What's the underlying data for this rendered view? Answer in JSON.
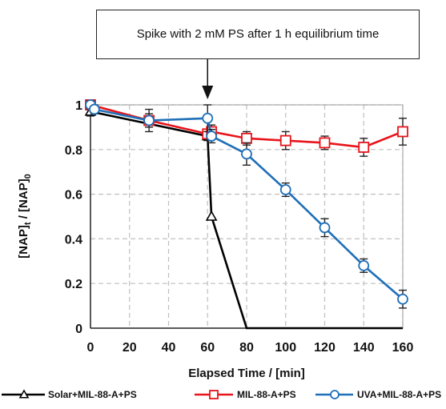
{
  "annotation": {
    "text": "Spike with 2 mM PS after 1 h equilibrium time",
    "x": 60
  },
  "chart_data": {
    "type": "line",
    "xlabel": "Elapsed Time / [min]",
    "ylabel": {
      "p1": "[NAP]",
      "s1": "t",
      "p2": " / [NAP]",
      "s2": "0"
    },
    "xlim": [
      0,
      160
    ],
    "ylim": [
      0,
      1
    ],
    "xticks": [
      0,
      20,
      40,
      60,
      80,
      100,
      120,
      140,
      160
    ],
    "yticks": [
      0,
      0.2,
      0.4,
      0.6,
      0.8,
      1
    ],
    "ytick_labels": [
      "0",
      "0.2",
      "0.4",
      "0.6",
      "0.8",
      "1"
    ],
    "grid": true,
    "legend_position": "bottom",
    "series": [
      {
        "name": "Solar+MIL-88-A+PS",
        "color": "#000000",
        "marker": "triangle",
        "x": [
          0,
          60,
          62,
          80,
          160
        ],
        "y": [
          0.97,
          0.86,
          0.5,
          0,
          0
        ],
        "err": [
          0.02,
          0.02,
          0,
          0,
          0
        ]
      },
      {
        "name": "MIL-88-A+PS",
        "color": "#e8141b",
        "marker": "square",
        "x": [
          0,
          30,
          60,
          62,
          80,
          100,
          120,
          140,
          160
        ],
        "y": [
          1.0,
          0.93,
          0.87,
          0.88,
          0.85,
          0.84,
          0.83,
          0.81,
          0.88
        ],
        "err": [
          0.02,
          0.05,
          0.02,
          0.03,
          0.03,
          0.04,
          0.03,
          0.04,
          0.06
        ]
      },
      {
        "name": "UVA+MIL-88-A+PS",
        "color": "#1f6fb8",
        "marker": "circle",
        "x": [
          0,
          2,
          30,
          60,
          62,
          80,
          100,
          120,
          140,
          160
        ],
        "y": [
          1.0,
          0.98,
          0.93,
          0.94,
          0.86,
          0.78,
          0.62,
          0.45,
          0.28,
          0.13
        ],
        "err": [
          0.02,
          0.02,
          0.03,
          0.06,
          0.03,
          0.05,
          0.03,
          0.04,
          0.03,
          0.04
        ]
      }
    ]
  }
}
